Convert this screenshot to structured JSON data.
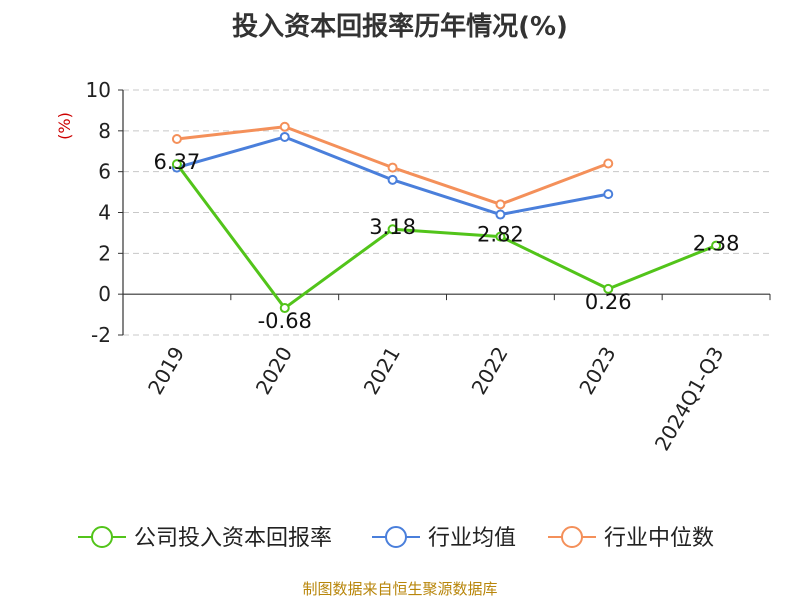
{
  "chart_data": {
    "type": "line",
    "title": "投入资本回报率历年情况(%)",
    "ylabel": "(%)",
    "categories": [
      "2019",
      "2020",
      "2021",
      "2022",
      "2023",
      "2024Q1-Q3"
    ],
    "ylim": [
      -2,
      10
    ],
    "yticks": [
      -2,
      0,
      2,
      4,
      6,
      8,
      10
    ],
    "grid": true,
    "legend_position": "bottom",
    "series": [
      {
        "name": "公司投入资本回报率",
        "color": "#52c41a",
        "values": [
          6.37,
          -0.68,
          3.18,
          2.82,
          0.26,
          2.38
        ],
        "labels": [
          "6.37",
          "-0.68",
          "3.18",
          "2.82",
          "0.26",
          "2.38"
        ]
      },
      {
        "name": "行业均值",
        "color": "#4a7fdb",
        "values": [
          6.2,
          7.7,
          5.6,
          3.9,
          4.9,
          null
        ]
      },
      {
        "name": "行业中位数",
        "color": "#f4905a",
        "values": [
          7.6,
          8.2,
          6.2,
          4.4,
          6.4,
          null
        ]
      }
    ],
    "source": "制图数据来自恒生聚源数据库"
  }
}
